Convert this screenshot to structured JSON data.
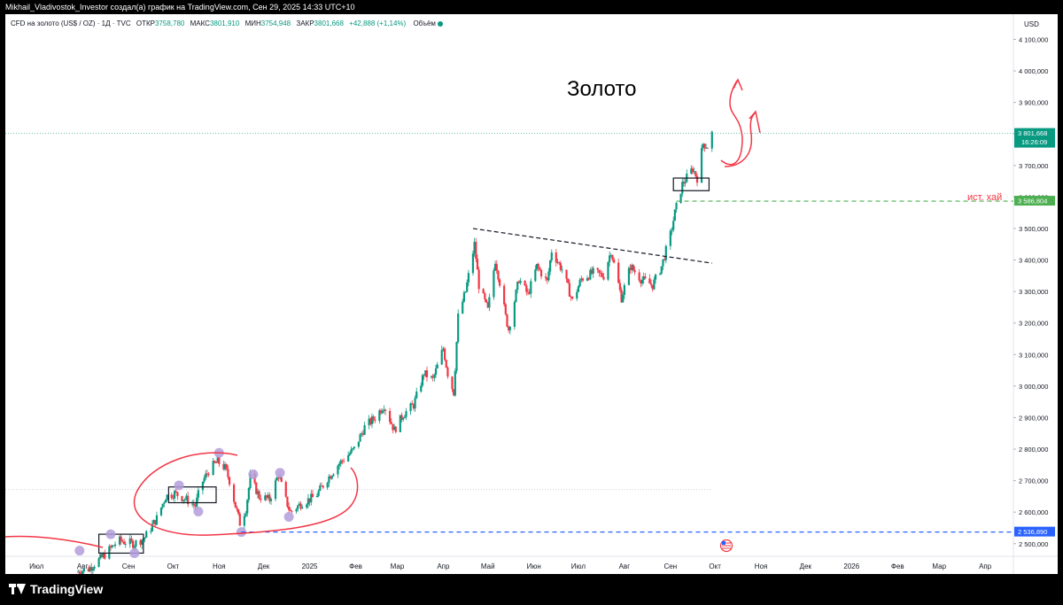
{
  "header": {
    "attribution": "Mikhail_Vladivostok_Investor создал(а) график на TradingView.com, Сен 29, 2025 14:33 UTC+10"
  },
  "legend": {
    "symbol": "CFD на золото (US$ / OZ) · 1Д · TVC",
    "open_label": "ОТКР",
    "open": "3758,780",
    "high_label": "МАКС",
    "high": "3801,910",
    "low_label": "МИН",
    "low": "3754,948",
    "close_label": "ЗАКР",
    "close": "3801,668",
    "change": "+42,888 (+1,14%)",
    "volume_label": "Объём"
  },
  "footer": {
    "brand": "TradingView"
  },
  "colors": {
    "up": "#089981",
    "down": "#f23645",
    "annotation": "#f23645",
    "marker": "#b39ddb",
    "dashed_blue": "#2962ff",
    "dashed_green": "#4caf50",
    "trend": "#131722"
  },
  "chart_data": {
    "type": "candlestick",
    "title": "Золото",
    "currency": "USD",
    "ylim": [
      2460,
      4180
    ],
    "y_ticks": [
      "2 500,000",
      "2 600,000",
      "2 700,000",
      "2 800,000",
      "2 900,000",
      "3 000,000",
      "3 100,000",
      "3 200,000",
      "3 300,000",
      "3 400,000",
      "3 500,000",
      "3 600,000",
      "3 700,000",
      "3 800,000",
      "3 900,000",
      "4 000,000",
      "4 100,000"
    ],
    "y_tick_values": [
      2500,
      2600,
      2700,
      2800,
      2900,
      3000,
      3100,
      3200,
      3300,
      3400,
      3500,
      3600,
      3700,
      3800,
      3900,
      4000,
      4100
    ],
    "x_range": [
      "2024-06-10",
      "2026-04-20"
    ],
    "x_ticks": [
      {
        "label": "Июл",
        "date": "2024-07-01"
      },
      {
        "label": "Авг",
        "date": "2024-08-01"
      },
      {
        "label": "Сен",
        "date": "2024-09-01"
      },
      {
        "label": "Окт",
        "date": "2024-10-01"
      },
      {
        "label": "Ноя",
        "date": "2024-11-01"
      },
      {
        "label": "Дек",
        "date": "2024-12-01"
      },
      {
        "label": "2025",
        "date": "2025-01-01"
      },
      {
        "label": "Фев",
        "date": "2025-02-01"
      },
      {
        "label": "Мар",
        "date": "2025-03-01"
      },
      {
        "label": "Апр",
        "date": "2025-04-01"
      },
      {
        "label": "Май",
        "date": "2025-05-01"
      },
      {
        "label": "Июн",
        "date": "2025-06-01"
      },
      {
        "label": "Июл",
        "date": "2025-07-01"
      },
      {
        "label": "Авг",
        "date": "2025-08-01"
      },
      {
        "label": "Сен",
        "date": "2025-09-01"
      },
      {
        "label": "Окт",
        "date": "2025-10-01"
      },
      {
        "label": "Ноя",
        "date": "2025-11-01"
      },
      {
        "label": "Дек",
        "date": "2025-12-01"
      },
      {
        "label": "2026",
        "date": "2026-01-01"
      },
      {
        "label": "Фев",
        "date": "2026-02-01"
      },
      {
        "label": "Мар",
        "date": "2026-03-01"
      },
      {
        "label": "Апр",
        "date": "2026-04-01"
      }
    ],
    "path_points": [
      [
        "2024-07-28",
        2410
      ],
      [
        "2024-08-05",
        2420
      ],
      [
        "2024-08-15",
        2460
      ],
      [
        "2024-08-25",
        2510
      ],
      [
        "2024-09-05",
        2500
      ],
      [
        "2024-09-12",
        2520
      ],
      [
        "2024-09-20",
        2580
      ],
      [
        "2024-09-26",
        2650
      ],
      [
        "2024-10-02",
        2660
      ],
      [
        "2024-10-10",
        2640
      ],
      [
        "2024-10-16",
        2620
      ],
      [
        "2024-10-20",
        2690
      ],
      [
        "2024-10-26",
        2740
      ],
      [
        "2024-10-31",
        2760
      ],
      [
        "2024-11-05",
        2740
      ],
      [
        "2024-11-08",
        2700
      ],
      [
        "2024-11-12",
        2620
      ],
      [
        "2024-11-15",
        2565
      ],
      [
        "2024-11-19",
        2610
      ],
      [
        "2024-11-22",
        2710
      ],
      [
        "2024-11-28",
        2650
      ],
      [
        "2024-12-05",
        2640
      ],
      [
        "2024-12-11",
        2720
      ],
      [
        "2024-12-15",
        2650
      ],
      [
        "2024-12-19",
        2600
      ],
      [
        "2024-12-27",
        2630
      ],
      [
        "2025-01-05",
        2650
      ],
      [
        "2025-01-12",
        2700
      ],
      [
        "2025-01-20",
        2750
      ],
      [
        "2025-01-31",
        2800
      ],
      [
        "2025-02-07",
        2870
      ],
      [
        "2025-02-14",
        2900
      ],
      [
        "2025-02-20",
        2940
      ],
      [
        "2025-02-27",
        2860
      ],
      [
        "2025-03-05",
        2910
      ],
      [
        "2025-03-12",
        2940
      ],
      [
        "2025-03-19",
        3040
      ],
      [
        "2025-03-25",
        3020
      ],
      [
        "2025-04-01",
        3120
      ],
      [
        "2025-04-04",
        3040
      ],
      [
        "2025-04-08",
        2980
      ],
      [
        "2025-04-11",
        3220
      ],
      [
        "2025-04-16",
        3300
      ],
      [
        "2025-04-22",
        3450
      ],
      [
        "2025-04-25",
        3320
      ],
      [
        "2025-05-01",
        3240
      ],
      [
        "2025-05-06",
        3400
      ],
      [
        "2025-05-09",
        3330
      ],
      [
        "2025-05-13",
        3220
      ],
      [
        "2025-05-15",
        3180
      ],
      [
        "2025-05-22",
        3340
      ],
      [
        "2025-05-28",
        3290
      ],
      [
        "2025-06-03",
        3380
      ],
      [
        "2025-06-10",
        3330
      ],
      [
        "2025-06-13",
        3430
      ],
      [
        "2025-06-20",
        3370
      ],
      [
        "2025-06-27",
        3270
      ],
      [
        "2025-07-03",
        3340
      ],
      [
        "2025-07-11",
        3360
      ],
      [
        "2025-07-18",
        3350
      ],
      [
        "2025-07-23",
        3430
      ],
      [
        "2025-07-30",
        3280
      ],
      [
        "2025-08-05",
        3380
      ],
      [
        "2025-08-12",
        3340
      ],
      [
        "2025-08-20",
        3320
      ],
      [
        "2025-08-26",
        3380
      ],
      [
        "2025-09-01",
        3480
      ],
      [
        "2025-09-04",
        3550
      ],
      [
        "2025-09-09",
        3640
      ],
      [
        "2025-09-16",
        3690
      ],
      [
        "2025-09-19",
        3660
      ],
      [
        "2025-09-23",
        3770
      ],
      [
        "2025-09-26",
        3760
      ],
      [
        "2025-09-29",
        3801.668
      ]
    ],
    "price_labels": [
      {
        "label": "3 801,668",
        "value": 3801.668,
        "countdown": "16:26:09",
        "color": "#089981"
      },
      {
        "label": "3 586,804",
        "value": 3586.804,
        "color": "#4caf50"
      },
      {
        "label": "2 536,890",
        "value": 2536.89,
        "color": "#2962ff"
      }
    ],
    "annotations": {
      "note_high": "ист. хай",
      "trendline": [
        [
          "2025-04-21",
          3500
        ],
        [
          "2025-09-29",
          3390
        ]
      ],
      "dashed_green": {
        "value": 3586.804,
        "from": "2025-09-05"
      },
      "dashed_blue": {
        "value": 2536.89,
        "from": "2024-11-16"
      },
      "gray_level": {
        "value": 2672,
        "from": "2024-06-10",
        "to": "2025-09-29"
      },
      "current_level": {
        "value": 3801.668
      },
      "boxes": [
        {
          "from": "2024-08-12",
          "to": "2024-09-11",
          "low": 2470,
          "high": 2530
        },
        {
          "from": "2024-09-28",
          "to": "2024-10-30",
          "low": 2630,
          "high": 2680
        },
        {
          "from": "2025-09-03",
          "to": "2025-09-27",
          "low": 3620,
          "high": 3660
        }
      ],
      "markers": [
        [
          "2024-07-30",
          2478
        ],
        [
          "2024-08-20",
          2530
        ],
        [
          "2024-09-05",
          2470
        ],
        [
          "2024-10-05",
          2685
        ],
        [
          "2024-10-18",
          2602
        ],
        [
          "2024-11-01",
          2788
        ],
        [
          "2024-11-16",
          2537
        ],
        [
          "2024-11-24",
          2720
        ],
        [
          "2024-12-12",
          2725
        ],
        [
          "2024-12-18",
          2585
        ]
      ]
    }
  }
}
